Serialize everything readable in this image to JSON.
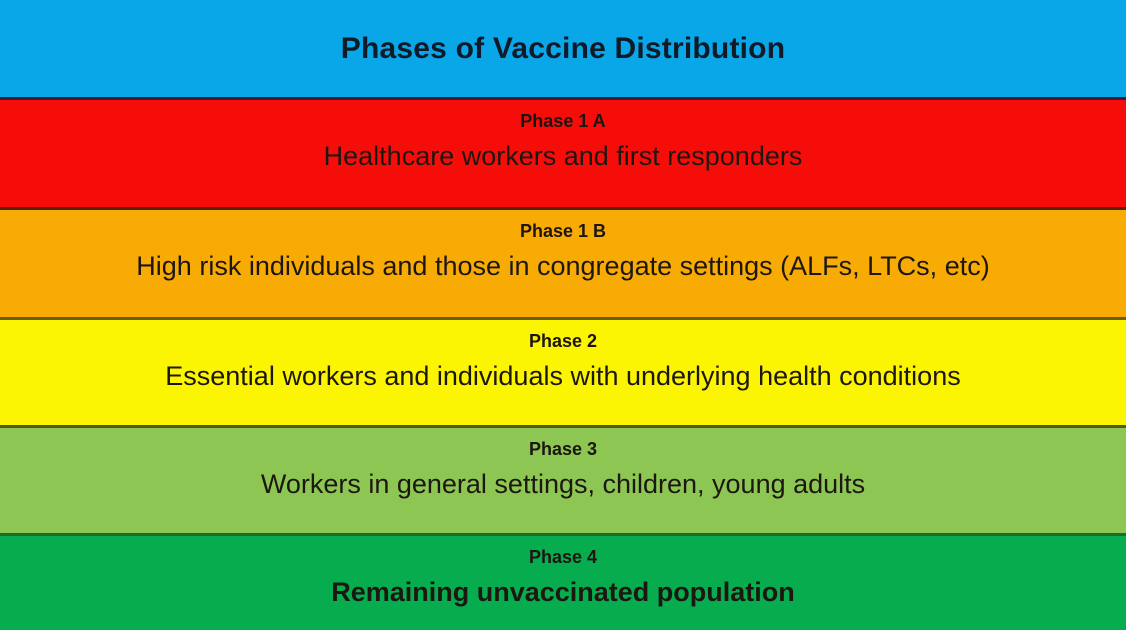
{
  "slide": {
    "title": "Phases of Vaccine Distribution",
    "header_bg": "#09a7e7",
    "title_color": "#101a28"
  },
  "phases": [
    {
      "label": "Phase 1 A",
      "description": "Healthcare workers and first responders",
      "color": "#f60d0a"
    },
    {
      "label": "Phase 1 B",
      "description": "High risk individuals and those in congregate settings (ALFs, LTCs, etc)",
      "color": "#f9ab05"
    },
    {
      "label": "Phase 2",
      "description": "Essential workers and individuals with underlying health conditions",
      "color": "#fcf501"
    },
    {
      "label": "Phase 3",
      "description": "Workers in general settings, children, young adults",
      "color": "#8dc653"
    },
    {
      "label": "Phase 4",
      "description": "Remaining unvaccinated population",
      "color": "#07ac4f"
    }
  ]
}
